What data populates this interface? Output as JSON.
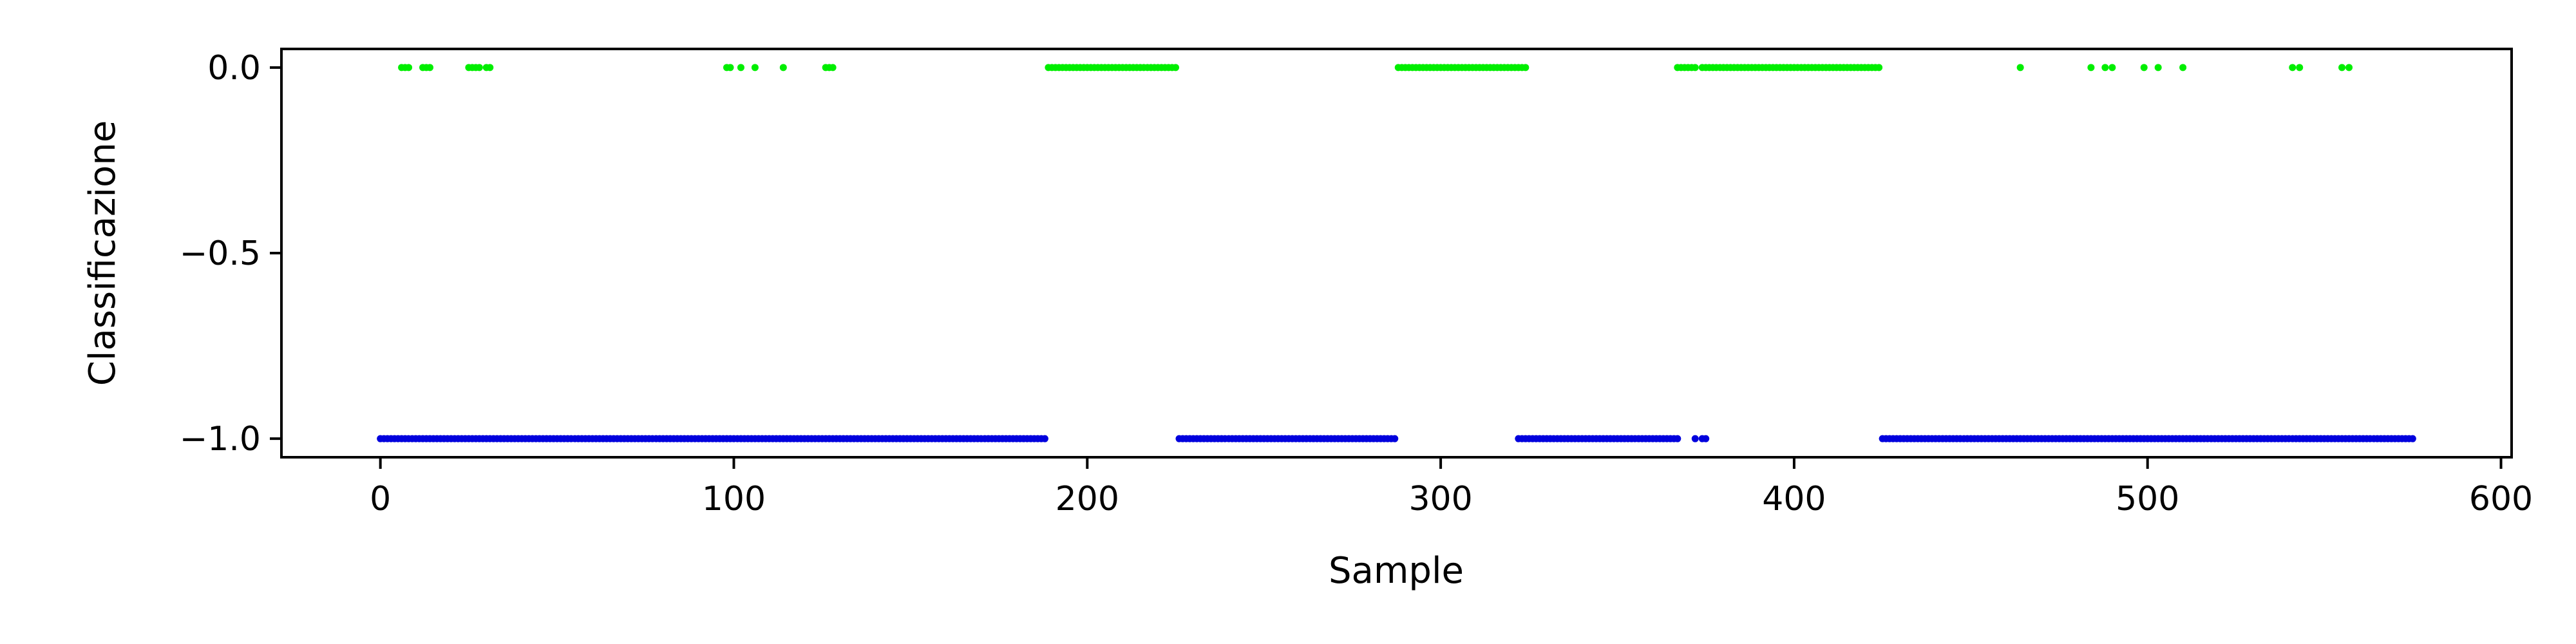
{
  "chart_data": {
    "type": "scatter",
    "title": "",
    "xlabel": "Sample",
    "ylabel": "Classificazione",
    "xlim": [
      -28,
      603
    ],
    "ylim": [
      -1.05,
      0.05
    ],
    "xticks": [
      0,
      100,
      200,
      300,
      400,
      500,
      600
    ],
    "xtick_labels": [
      "0",
      "100",
      "200",
      "300",
      "400",
      "500",
      "600"
    ],
    "yticks": [
      0.0,
      -0.5,
      -1.0
    ],
    "ytick_labels": [
      "0.0",
      "−0.5",
      "−1.0"
    ],
    "grid": false,
    "legend": "none",
    "series": [
      {
        "color": "#00ee00",
        "y": 0.0,
        "points": [
          6,
          7,
          8,
          12,
          13,
          14,
          25,
          26,
          27,
          28,
          30,
          31,
          98,
          99,
          102,
          106,
          114,
          126,
          127,
          128,
          [
            189,
            225
          ],
          [
            288,
            324
          ],
          [
            367,
            372
          ],
          [
            374,
            424
          ],
          464,
          484,
          488,
          490,
          499,
          503,
          510,
          541,
          543,
          555,
          557
        ]
      },
      {
        "color": "#0000dd",
        "y": -1.0,
        "points": [
          [
            0,
            188
          ],
          [
            226,
            287
          ],
          [
            322,
            367
          ],
          372,
          374,
          375,
          [
            425,
            575
          ]
        ]
      }
    ]
  }
}
